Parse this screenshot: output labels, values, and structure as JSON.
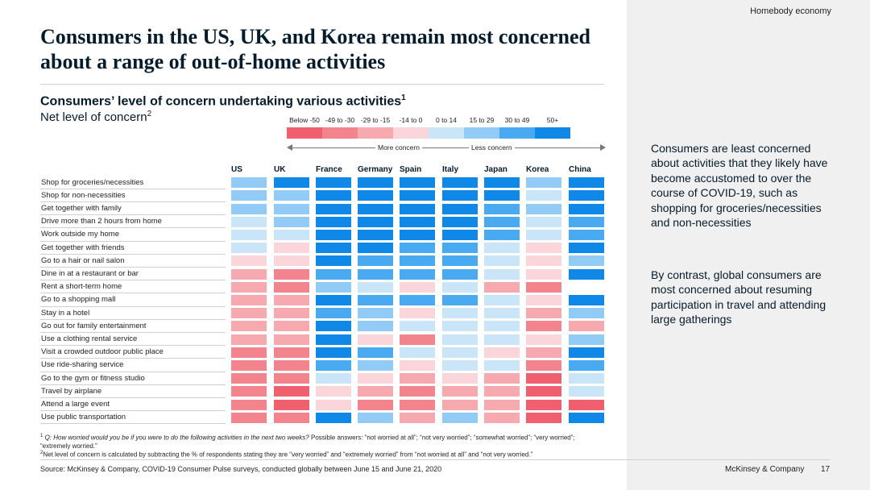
{
  "section_tag": "Homebody economy",
  "title": "Consumers in the US, UK, and Korea remain most concerned about a range of out-of-home activities",
  "subtitle": "Consumers’ level of concern undertaking various activities",
  "subtitle_note": "1",
  "subsubtitle": "Net level of concern",
  "subsubtitle_note": "2",
  "legend": {
    "bins": [
      {
        "label": "Below -50",
        "color": "#ef5f6e"
      },
      {
        "label": "-49 to -30",
        "color": "#f3848e"
      },
      {
        "label": "-29 to -15",
        "color": "#f6aab0"
      },
      {
        "label": "-14 to 0",
        "color": "#fad6da"
      },
      {
        "label": "0 to 14",
        "color": "#cbe5f8"
      },
      {
        "label": "15 to 29",
        "color": "#92ccf6"
      },
      {
        "label": "30 to 49",
        "color": "#4aaaf1"
      },
      {
        "label": "50+",
        "color": "#1088e8"
      }
    ],
    "more_concern": "More concern",
    "less_concern": "Less concern"
  },
  "chart_data": {
    "type": "heatmap",
    "title": "Consumers’ level of concern undertaking various activities",
    "value_label": "Net level of concern (binned, 0 = Below -50 ... 7 = 50+)",
    "columns": [
      "US",
      "UK",
      "France",
      "Germany",
      "Spain",
      "Italy",
      "Japan",
      "Korea",
      "China"
    ],
    "rows": [
      {
        "label": "Shop for groceries/necessities",
        "values": [
          5,
          7,
          7,
          7,
          7,
          7,
          7,
          5,
          7
        ]
      },
      {
        "label": "Shop for non-necessities",
        "values": [
          5,
          5,
          7,
          7,
          7,
          7,
          7,
          4,
          7
        ]
      },
      {
        "label": "Get together with family",
        "values": [
          5,
          5,
          7,
          7,
          7,
          7,
          6,
          5,
          7
        ]
      },
      {
        "label": "Drive more than 2 hours from home",
        "values": [
          4,
          5,
          7,
          7,
          7,
          7,
          6,
          4,
          6
        ]
      },
      {
        "label": "Work outside my home",
        "values": [
          4,
          4,
          7,
          7,
          7,
          7,
          6,
          4,
          6
        ]
      },
      {
        "label": "Get together with friends",
        "values": [
          4,
          3,
          7,
          7,
          6,
          6,
          4,
          3,
          7
        ]
      },
      {
        "label": "Go to a hair or nail salon",
        "values": [
          3,
          3,
          7,
          6,
          6,
          6,
          4,
          3,
          5
        ]
      },
      {
        "label": "Dine in at a restaurant or bar",
        "values": [
          2,
          1,
          6,
          6,
          6,
          6,
          4,
          3,
          7
        ]
      },
      {
        "label": "Rent a short-term home",
        "values": [
          2,
          1,
          5,
          4,
          3,
          4,
          2,
          1,
          null
        ]
      },
      {
        "label": "Go to a shopping mall",
        "values": [
          2,
          2,
          7,
          6,
          6,
          6,
          4,
          3,
          7
        ]
      },
      {
        "label": "Stay in a hotel",
        "values": [
          2,
          2,
          6,
          5,
          3,
          4,
          4,
          2,
          5
        ]
      },
      {
        "label": "Go out for family entertainment",
        "values": [
          2,
          2,
          7,
          5,
          4,
          4,
          4,
          1,
          2
        ]
      },
      {
        "label": "Use a clothing rental service",
        "values": [
          2,
          2,
          7,
          3,
          1,
          4,
          4,
          3,
          5
        ]
      },
      {
        "label": "Visit a crowded outdoor public place",
        "values": [
          1,
          1,
          7,
          6,
          4,
          4,
          3,
          2,
          7
        ]
      },
      {
        "label": "Use ride-sharing service",
        "values": [
          1,
          1,
          6,
          5,
          3,
          4,
          4,
          1,
          6
        ]
      },
      {
        "label": "Go to the gym or fitness studio",
        "values": [
          1,
          1,
          4,
          3,
          2,
          3,
          2,
          0,
          4
        ]
      },
      {
        "label": "Travel by airplane",
        "values": [
          1,
          0,
          3,
          2,
          1,
          2,
          2,
          0,
          4
        ]
      },
      {
        "label": "Attend a large event",
        "values": [
          1,
          0,
          3,
          1,
          1,
          2,
          2,
          0,
          0
        ]
      },
      {
        "label": "Use public transportation",
        "values": [
          1,
          1,
          7,
          5,
          2,
          5,
          2,
          0,
          7
        ]
      }
    ]
  },
  "analysis": {
    "paragraph1": "Consumers are least concerned about activities that they likely have become accustomed to over the course of COVID-19, such as shopping for groceries/necessities and non-necessities",
    "paragraph2": "By contrast, global consumers are most concerned about resuming participation in travel and attending large gatherings"
  },
  "footnotes": {
    "note1_marker": "1",
    "note1_question": "Q: How worried would you be if you were to do the following activities in the next two weeks?",
    "note1_answers": "Possible answers: “not worried at all”; “not very worried”; “somewhat worried”; “very worried”; “extremely worried.”",
    "note2_marker": "2",
    "note2_text": "Net level of concern is calculated by subtracting the % of respondents stating they are “very worried” and “extremely worried” from “not worried at all” and “not very worried.”"
  },
  "source": "Source: McKinsey & Company, COVID-19 Consumer Pulse surveys, conducted globally between June 15 and June 21, 2020",
  "brand": "McKinsey & Company",
  "page_number": "17"
}
